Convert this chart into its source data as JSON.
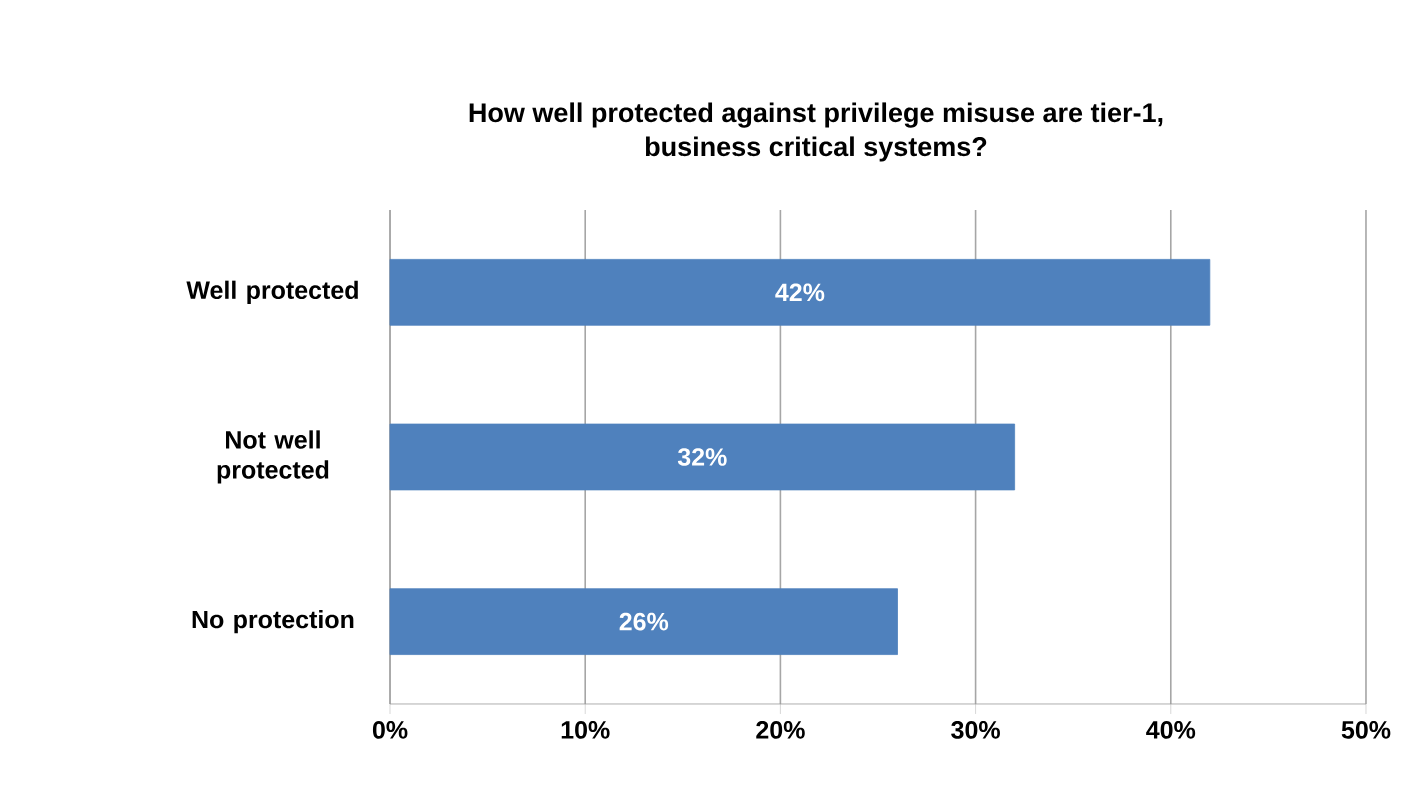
{
  "chart_data": {
    "type": "bar",
    "orientation": "horizontal",
    "title": "How well protected against privilege misuse are tier-1,\nbusiness critical systems?",
    "categories": [
      "Well protected",
      "Not well protected",
      "No protection"
    ],
    "values": [
      42,
      32,
      26
    ],
    "value_labels": [
      "42%",
      "32%",
      "26%"
    ],
    "color": "#4f81bd",
    "xlim": [
      0,
      50
    ],
    "xticks": [
      {
        "value": 0,
        "label": "0%"
      },
      {
        "value": 10,
        "label": "10%"
      },
      {
        "value": 20,
        "label": "20%"
      },
      {
        "value": 30,
        "label": "30%"
      },
      {
        "value": 40,
        "label": "40%"
      },
      {
        "value": 50,
        "label": "50%"
      }
    ],
    "grid": "x"
  }
}
